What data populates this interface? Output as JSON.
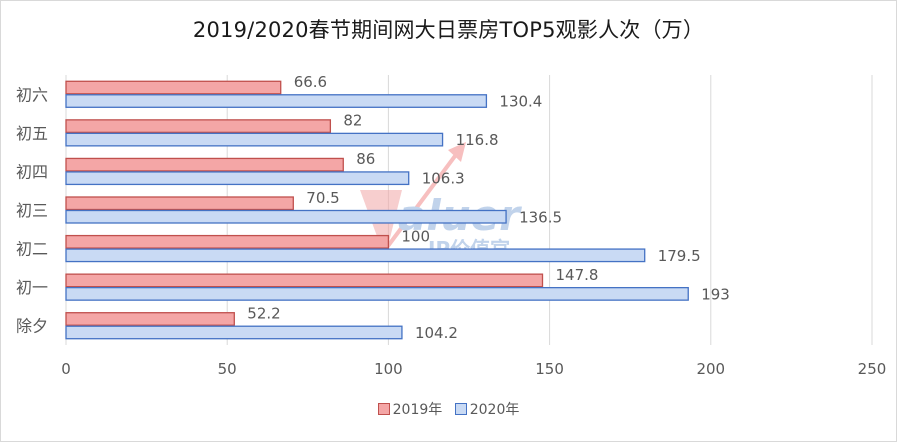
{
  "chart_data": {
    "type": "bar",
    "orientation": "horizontal",
    "title": "2019/2020春节期间网大日票房TOP5观影人次（万）",
    "categories": [
      "除夕",
      "初一",
      "初二",
      "初三",
      "初四",
      "初五",
      "初六"
    ],
    "series": [
      {
        "name": "2019年",
        "values": [
          52.2,
          147.8,
          100,
          70.5,
          86,
          82,
          66.6
        ],
        "color": "#f4a6a6",
        "stroke": "#c0504d"
      },
      {
        "name": "2020年",
        "values": [
          104.2,
          193,
          179.5,
          136.5,
          106.3,
          116.8,
          130.4
        ],
        "color": "#c9daf4",
        "stroke": "#4472c4"
      }
    ],
    "xlim": [
      0,
      250
    ],
    "xticks": [
      0,
      50,
      100,
      150,
      200,
      250
    ],
    "grid": true,
    "legend_position": "bottom",
    "xlabel": "",
    "ylabel": ""
  },
  "watermark": {
    "brand": "Valuer",
    "tagline": "IP价值官"
  }
}
